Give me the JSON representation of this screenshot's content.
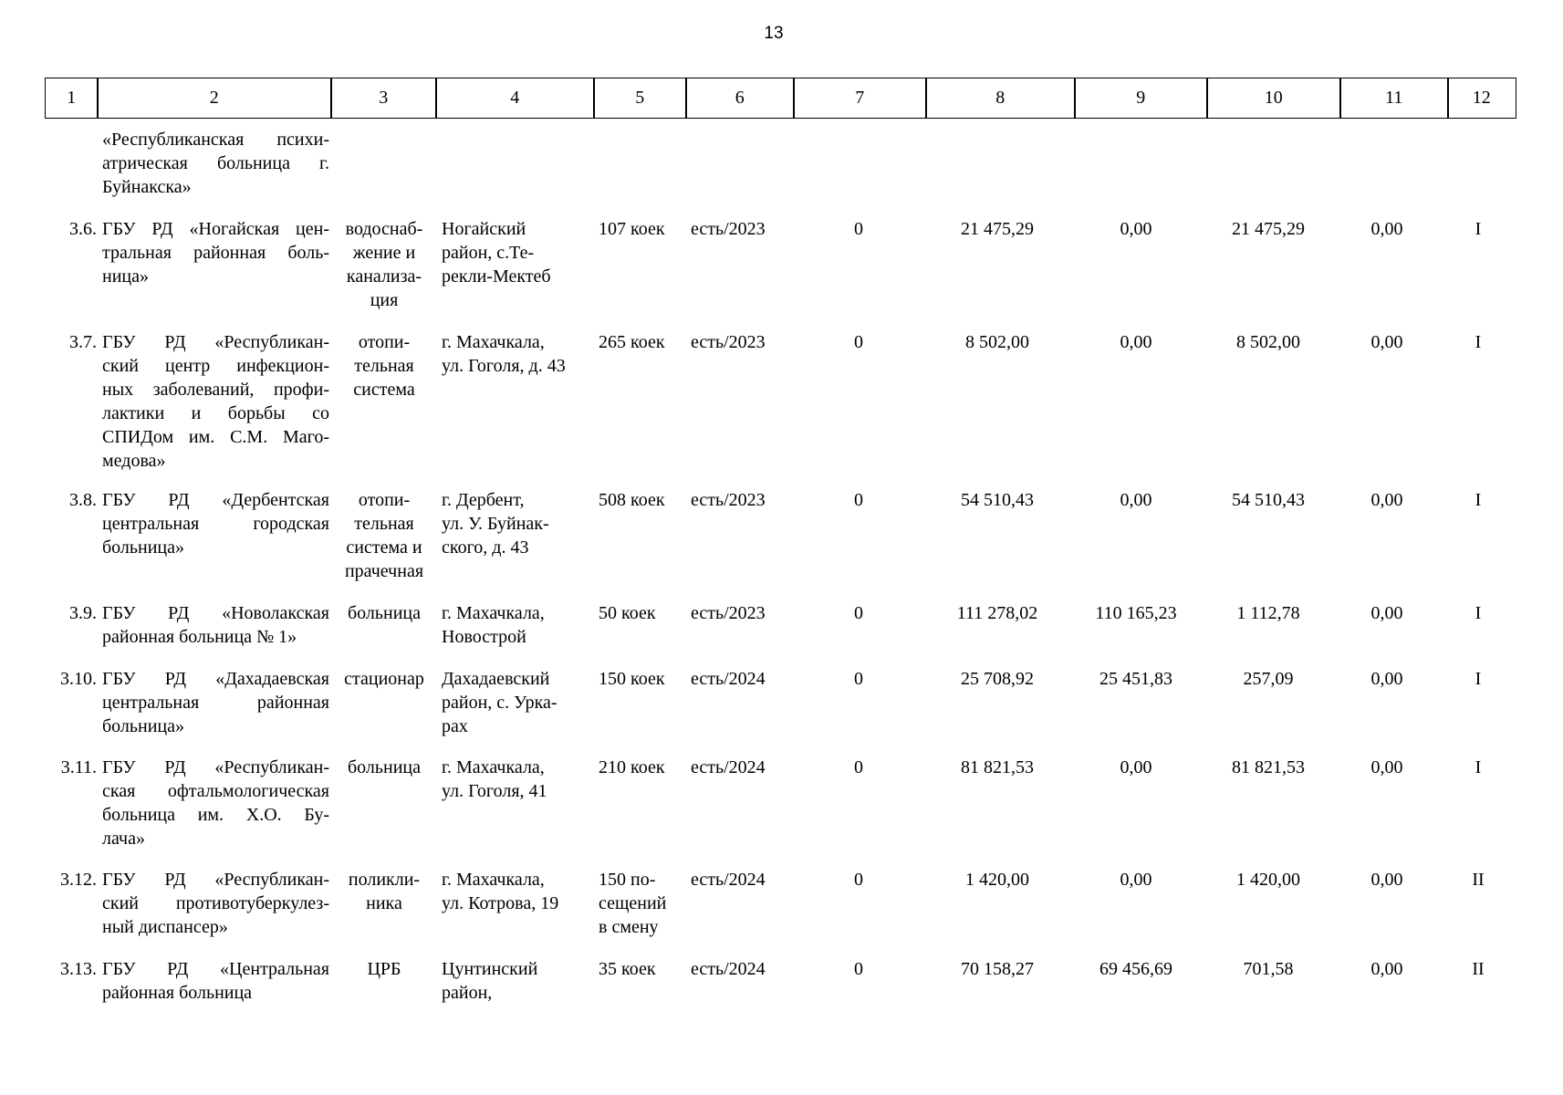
{
  "page_number": "13",
  "header": [
    "1",
    "2",
    "3",
    "4",
    "5",
    "6",
    "7",
    "8",
    "9",
    "10",
    "11",
    "12"
  ],
  "rows": [
    {
      "name": [
        "«Республиканская психи-",
        "атрическая больница г.",
        "Буйнакска»"
      ]
    },
    {
      "number": "3.6.",
      "name": [
        "ГБУ РД «Ногайская цен-",
        "тральная районная боль-",
        "ница»"
      ],
      "purpose": [
        "водоснаб-",
        "жение и",
        "канализа-",
        "ция"
      ],
      "address": [
        "Ногайский",
        "район, с.Те-",
        "рекли-Мектеб"
      ],
      "capacity": [
        "107 коек"
      ],
      "status": "есть/2023",
      "c7": "0",
      "c8": "21 475,29",
      "c9": "0,00",
      "c10": "21 475,29",
      "c11": "0,00",
      "c12": "I"
    },
    {
      "number": "3.7.",
      "name": [
        "ГБУ РД «Республикан-",
        "ский центр инфекцион-",
        "ных заболеваний, профи-",
        "лактики и борьбы со",
        "СПИДом им. С.М. Маго-",
        "медова»"
      ],
      "purpose": [
        "отопи-",
        "тельная",
        "система"
      ],
      "address": [
        "г. Махачкала,",
        "ул. Гоголя, д. 43"
      ],
      "capacity": [
        "265 коек"
      ],
      "status": "есть/2023",
      "c7": "0",
      "c8": "8 502,00",
      "c9": "0,00",
      "c10": "8 502,00",
      "c11": "0,00",
      "c12": "I"
    },
    {
      "number": "3.8.",
      "name": [
        "ГБУ РД «Дербентская",
        "центральная городская",
        "больница»"
      ],
      "purpose": [
        "отопи-",
        "тельная",
        "система и",
        "прачечная"
      ],
      "address": [
        "г. Дербент,",
        "ул. У. Буйнак-",
        "ского, д. 43"
      ],
      "capacity": [
        "508 коек"
      ],
      "status": "есть/2023",
      "c7": "0",
      "c8": "54 510,43",
      "c9": "0,00",
      "c10": "54 510,43",
      "c11": "0,00",
      "c12": "I"
    },
    {
      "number": "3.9.",
      "name": [
        "ГБУ РД «Новолакская",
        "районная больница № 1»"
      ],
      "purpose": [
        "больница"
      ],
      "address": [
        "г. Махачкала,",
        "Новострой"
      ],
      "capacity": [
        "50 коек"
      ],
      "status": "есть/2023",
      "c7": "0",
      "c8": "111 278,02",
      "c9": "110 165,23",
      "c10": "1 112,78",
      "c11": "0,00",
      "c12": "I"
    },
    {
      "number": "3.10.",
      "name": [
        "ГБУ РД «Дахадаевская",
        "центральная районная",
        "больница»"
      ],
      "purpose": [
        "стационар"
      ],
      "address": [
        "Дахадаевский",
        "район, с. Урка-",
        "рах"
      ],
      "capacity": [
        "150 коек"
      ],
      "status": "есть/2024",
      "c7": "0",
      "c8": "25 708,92",
      "c9": "25 451,83",
      "c10": "257,09",
      "c11": "0,00",
      "c12": "I"
    },
    {
      "number": "3.11.",
      "name": [
        "ГБУ РД «Республикан-",
        "ская офтальмологическая",
        "больница им. Х.О. Бу-",
        "лача»"
      ],
      "purpose": [
        "больница"
      ],
      "address": [
        "г. Махачкала,",
        "ул. Гоголя, 41"
      ],
      "capacity": [
        "210 коек"
      ],
      "status": "есть/2024",
      "c7": "0",
      "c8": "81 821,53",
      "c9": "0,00",
      "c10": "81 821,53",
      "c11": "0,00",
      "c12": "I"
    },
    {
      "number": "3.12.",
      "name": [
        "ГБУ РД «Республикан-",
        "ский противотуберкулез-",
        "ный диспансер»"
      ],
      "purpose": [
        "поликли-",
        "ника"
      ],
      "address": [
        "г. Махачкала,",
        "ул. Котрова, 19"
      ],
      "capacity": [
        "150 по-",
        "сещений",
        "в смену"
      ],
      "status": "есть/2024",
      "c7": "0",
      "c8": "1 420,00",
      "c9": "0,00",
      "c10": "1 420,00",
      "c11": "0,00",
      "c12": "II"
    },
    {
      "number": "3.13.",
      "name": [
        "ГБУ РД «Центральная",
        "районная больница"
      ],
      "purpose": [
        "ЦРБ"
      ],
      "address": [
        "Цунтинский",
        "район,"
      ],
      "capacity": [
        "35 коек"
      ],
      "status": "есть/2024",
      "c7": "0",
      "c8": "70 158,27",
      "c9": "69 456,69",
      "c10": "701,58",
      "c11": "0,00",
      "c12": "II"
    }
  ]
}
